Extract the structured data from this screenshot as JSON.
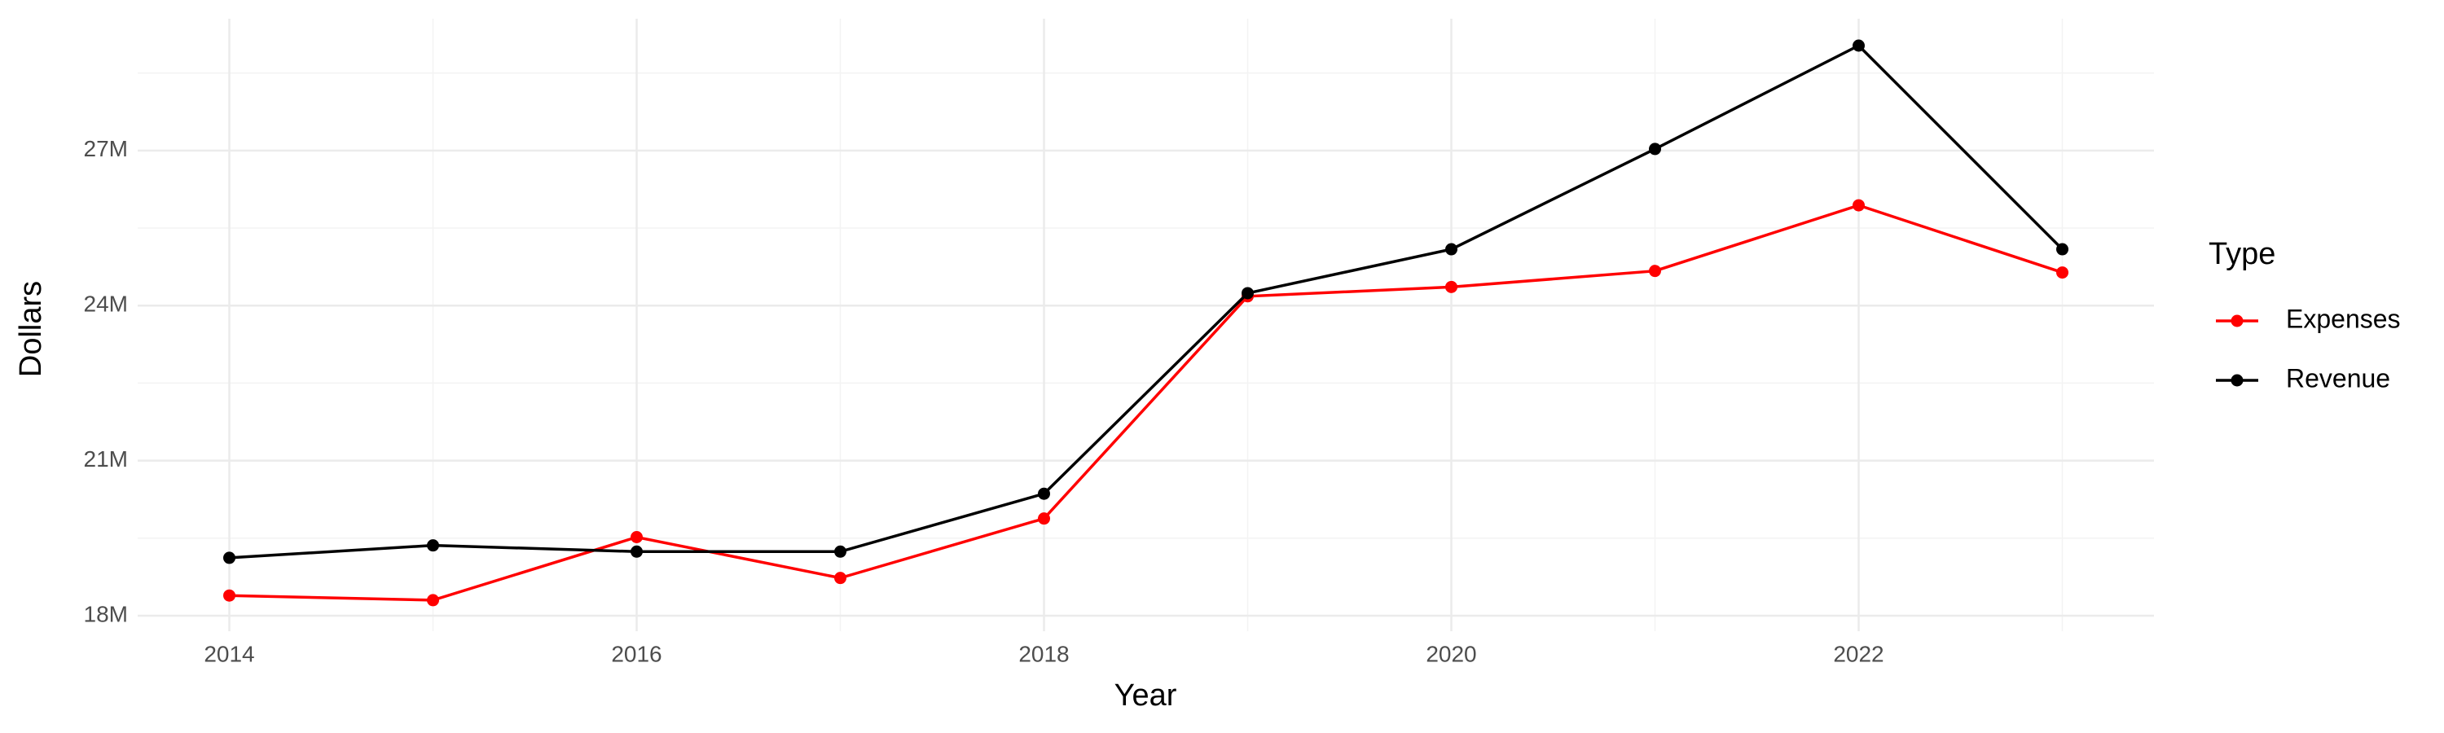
{
  "chart_data": {
    "type": "line",
    "x_label": "Year",
    "y_label": "Dollars",
    "x": [
      2014,
      2015,
      2016,
      2017,
      2018,
      2019,
      2020,
      2021,
      2022,
      2023
    ],
    "series": [
      {
        "name": "Expenses",
        "color": "#ff0000",
        "values": [
          18390000,
          18300000,
          19520000,
          18730000,
          19880000,
          24180000,
          24360000,
          24670000,
          25940000,
          24640000
        ]
      },
      {
        "name": "Revenue",
        "color": "#000000",
        "values": [
          19120000,
          19360000,
          19240000,
          19240000,
          20360000,
          24240000,
          25090000,
          27030000,
          29030000,
          25090000
        ]
      }
    ],
    "xlim": [
      2013.55,
      2023.45
    ],
    "xticks": [
      2014,
      2016,
      2018,
      2020,
      2022
    ],
    "ylim": [
      17700000,
      29550000
    ],
    "yticks": [
      {
        "value": 18000000,
        "label": "18M"
      },
      {
        "value": 21000000,
        "label": "21M"
      },
      {
        "value": 24000000,
        "label": "24M"
      },
      {
        "value": 27000000,
        "label": "27M"
      }
    ],
    "grid": true,
    "legend_title": "Type",
    "legend_position": "right"
  }
}
